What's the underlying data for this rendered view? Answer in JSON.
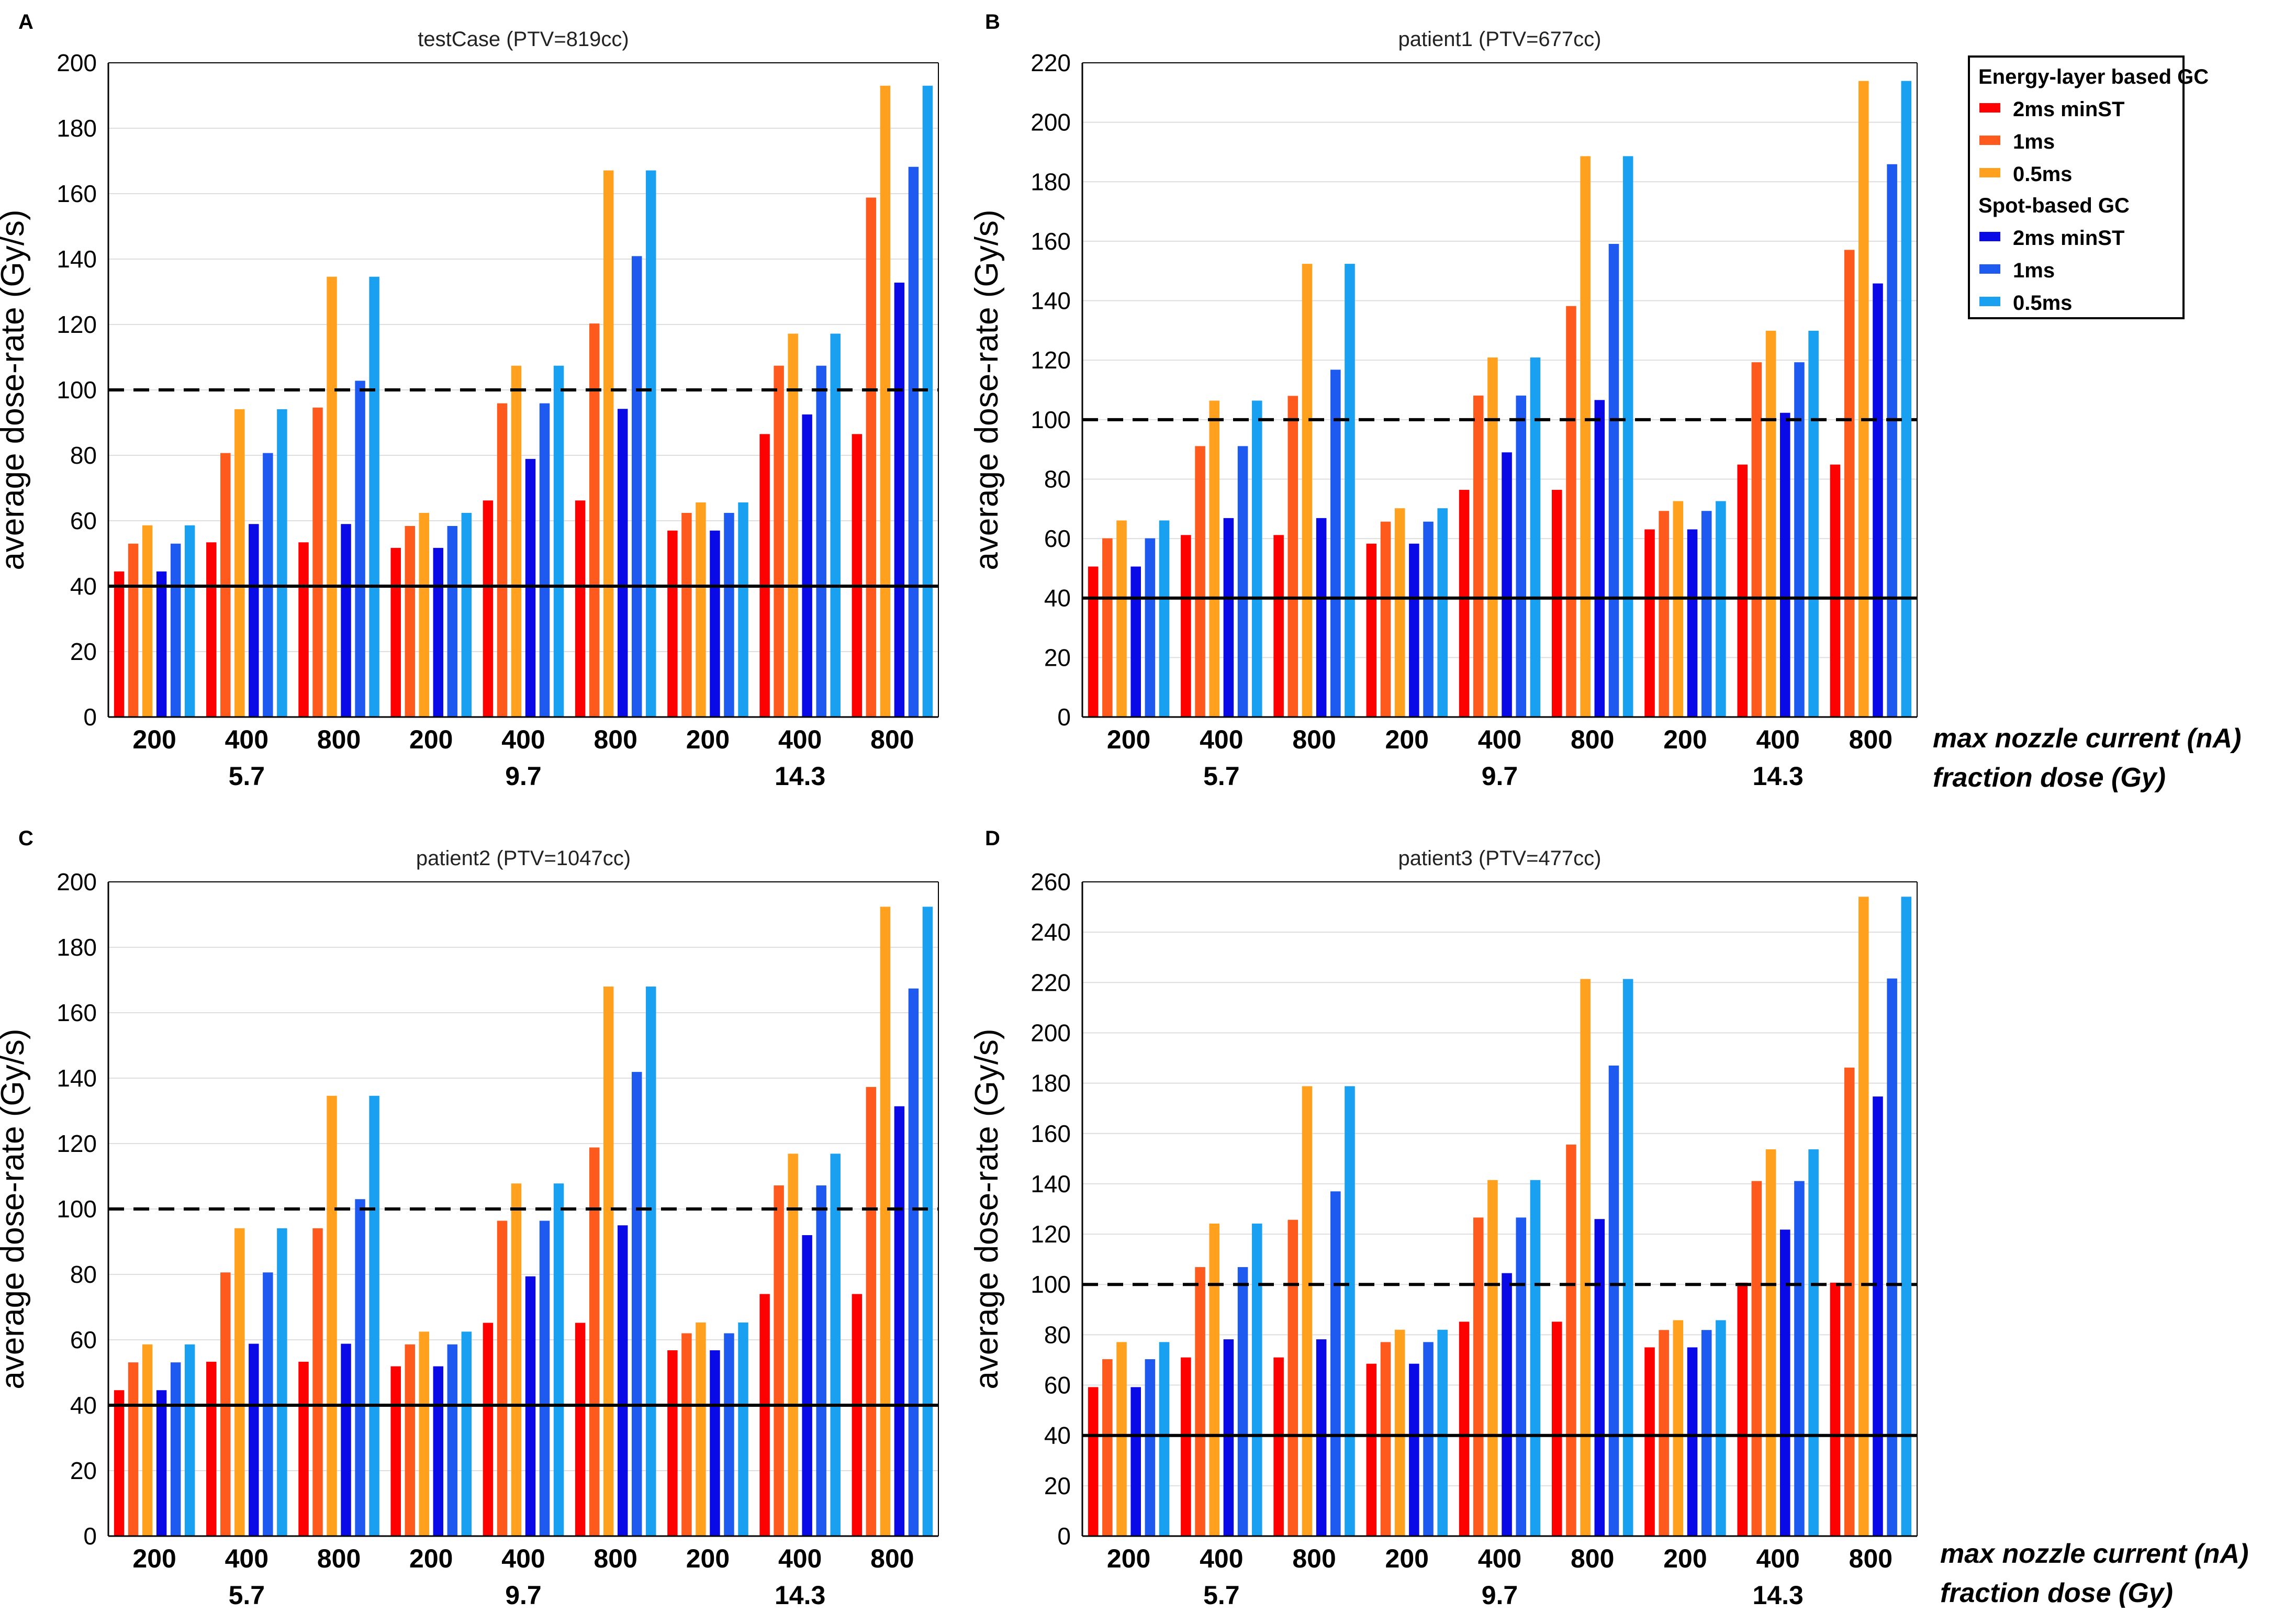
{
  "figure": {
    "x_axis_labels": {
      "current": "max nozzle current (nA)",
      "dose": "fraction dose (Gy)"
    }
  },
  "legend": {
    "group_titles": [
      "Energy-layer based GC",
      "Spot-based GC"
    ],
    "entries": [
      {
        "label": "2ms minST",
        "color": "#ff0000"
      },
      {
        "label": "1ms",
        "color": "#ff5a1e"
      },
      {
        "label": "0.5ms",
        "color": "#ffa01e"
      },
      {
        "label": "2ms minST",
        "color": "#0a0ae6"
      },
      {
        "label": "1ms",
        "color": "#1e5af0"
      },
      {
        "label": "0.5ms",
        "color": "#19a0f0"
      }
    ]
  },
  "chart_data": [
    {
      "type": "bar",
      "panel_letter": "A",
      "title": "testCase (PTV=819cc)",
      "ylabel": "average dose-rate (Gy/s)",
      "ylim": [
        0,
        200
      ],
      "yticks": [
        0,
        20,
        40,
        60,
        80,
        100,
        120,
        140,
        160,
        180,
        200
      ],
      "categories": [
        "200",
        "400",
        "800",
        "200",
        "400",
        "800",
        "200",
        "400",
        "800"
      ],
      "groups": [
        "5.7",
        "9.7",
        "14.3"
      ],
      "reference_lines": [
        {
          "value": 100,
          "style": "dashed"
        },
        {
          "value": 40,
          "style": "solid"
        }
      ],
      "series": [
        {
          "name": "Energy-layer based GC 2ms minST",
          "values": [
            44.5,
            53.4,
            53.4,
            51.7,
            66.2,
            66.2,
            57.0,
            86.5,
            86.5
          ]
        },
        {
          "name": "Energy-layer based GC 1ms",
          "values": [
            53.0,
            80.7,
            94.6,
            58.4,
            95.9,
            120.3,
            62.4,
            107.4,
            158.8
          ]
        },
        {
          "name": "Energy-layer based GC 0.5ms",
          "values": [
            58.6,
            94.1,
            134.6,
            62.4,
            107.4,
            167.1,
            65.6,
            117.2,
            193.0
          ]
        },
        {
          "name": "Spot-based GC 2ms minST",
          "values": [
            44.5,
            59.0,
            59.0,
            51.7,
            78.9,
            94.2,
            57.0,
            92.5,
            132.8
          ]
        },
        {
          "name": "Spot-based GC 1ms",
          "values": [
            53.0,
            80.7,
            102.8,
            58.4,
            95.9,
            140.9,
            62.4,
            107.4,
            168.2
          ]
        },
        {
          "name": "Spot-based GC 0.5ms",
          "values": [
            58.6,
            94.1,
            134.6,
            62.4,
            107.4,
            167.1,
            65.6,
            117.2,
            193.0
          ]
        }
      ]
    },
    {
      "type": "bar",
      "panel_letter": "B",
      "title": "patient1 (PTV=677cc)",
      "ylabel": "average dose-rate (Gy/s)",
      "ylim": [
        0,
        220
      ],
      "yticks": [
        0,
        20,
        40,
        60,
        80,
        100,
        120,
        140,
        160,
        180,
        200,
        220
      ],
      "categories": [
        "200",
        "400",
        "800",
        "200",
        "400",
        "800",
        "200",
        "400",
        "800"
      ],
      "groups": [
        "5.7",
        "9.7",
        "14.3"
      ],
      "reference_lines": [
        {
          "value": 100,
          "style": "dashed"
        },
        {
          "value": 40,
          "style": "solid"
        }
      ],
      "series": [
        {
          "name": "Energy-layer based GC 2ms minST",
          "values": [
            50.6,
            61.2,
            61.2,
            58.3,
            76.4,
            76.4,
            63.1,
            84.9,
            84.9
          ]
        },
        {
          "name": "Energy-layer based GC 1ms",
          "values": [
            60.1,
            91.1,
            108.0,
            65.7,
            108.1,
            138.2,
            69.3,
            119.3,
            157.1
          ]
        },
        {
          "name": "Energy-layer based GC 0.5ms",
          "values": [
            66.1,
            106.4,
            152.4,
            70.2,
            120.9,
            188.6,
            72.6,
            129.9,
            213.9
          ]
        },
        {
          "name": "Spot-based GC 2ms minST",
          "values": [
            50.6,
            66.9,
            66.9,
            58.3,
            89.0,
            106.6,
            63.1,
            102.3,
            145.8
          ]
        },
        {
          "name": "Spot-based GC 1ms",
          "values": [
            60.1,
            91.1,
            116.8,
            65.7,
            108.1,
            159.1,
            69.3,
            119.3,
            185.9
          ]
        },
        {
          "name": "Spot-based GC 0.5ms",
          "values": [
            66.1,
            106.4,
            152.4,
            70.2,
            120.9,
            188.6,
            72.6,
            129.9,
            213.9
          ]
        }
      ]
    },
    {
      "type": "bar",
      "panel_letter": "C",
      "title": "patient2 (PTV=1047cc)",
      "ylabel": "average dose-rate (Gy/s)",
      "ylim": [
        0,
        200
      ],
      "yticks": [
        0,
        20,
        40,
        60,
        80,
        100,
        120,
        140,
        160,
        180,
        200
      ],
      "categories": [
        "200",
        "400",
        "800",
        "200",
        "400",
        "800",
        "200",
        "400",
        "800"
      ],
      "groups": [
        "5.7",
        "9.7",
        "14.3"
      ],
      "reference_lines": [
        {
          "value": 100,
          "style": "dashed"
        },
        {
          "value": 40,
          "style": "solid"
        }
      ],
      "series": [
        {
          "name": "Energy-layer based GC 2ms minST",
          "values": [
            44.6,
            53.3,
            53.3,
            51.9,
            65.2,
            65.2,
            56.8,
            74.0,
            74.0
          ]
        },
        {
          "name": "Energy-layer based GC 1ms",
          "values": [
            53.1,
            80.6,
            94.1,
            58.6,
            96.4,
            118.8,
            62.0,
            107.2,
            137.3
          ]
        },
        {
          "name": "Energy-layer based GC 0.5ms",
          "values": [
            58.6,
            94.1,
            134.6,
            62.5,
            107.8,
            168.0,
            65.3,
            116.9,
            192.4
          ]
        },
        {
          "name": "Spot-based GC 2ms minST",
          "values": [
            44.6,
            58.8,
            58.8,
            51.9,
            79.4,
            95.0,
            56.8,
            92.0,
            131.4
          ]
        },
        {
          "name": "Spot-based GC 1ms",
          "values": [
            53.1,
            80.6,
            103.0,
            58.6,
            96.4,
            141.9,
            62.0,
            107.2,
            167.4
          ]
        },
        {
          "name": "Spot-based GC 0.5ms",
          "values": [
            58.6,
            94.1,
            134.6,
            62.5,
            107.8,
            168.0,
            65.3,
            116.9,
            192.4
          ]
        }
      ]
    },
    {
      "type": "bar",
      "panel_letter": "D",
      "title": "patient3 (PTV=477cc)",
      "ylabel": "average dose-rate (Gy/s)",
      "ylim": [
        0,
        260
      ],
      "yticks": [
        0,
        20,
        40,
        60,
        80,
        100,
        120,
        140,
        160,
        180,
        200,
        220,
        240,
        260
      ],
      "categories": [
        "200",
        "400",
        "800",
        "200",
        "400",
        "800",
        "200",
        "400",
        "800"
      ],
      "groups": [
        "5.7",
        "9.7",
        "14.3"
      ],
      "reference_lines": [
        {
          "value": 100,
          "style": "dashed"
        },
        {
          "value": 40,
          "style": "solid"
        }
      ],
      "series": [
        {
          "name": "Energy-layer based GC 2ms minST",
          "values": [
            59.2,
            71.0,
            71.0,
            68.5,
            85.2,
            85.2,
            75.0,
            100.7,
            100.7
          ]
        },
        {
          "name": "Energy-layer based GC 1ms",
          "values": [
            70.3,
            106.9,
            125.7,
            77.1,
            126.6,
            155.6,
            81.9,
            141.1,
            186.2
          ]
        },
        {
          "name": "Energy-layer based GC 0.5ms",
          "values": [
            77.1,
            124.2,
            178.8,
            82.0,
            141.5,
            221.4,
            85.8,
            153.7,
            254.1
          ]
        },
        {
          "name": "Spot-based GC 2ms minST",
          "values": [
            59.2,
            78.2,
            78.2,
            68.5,
            104.5,
            126.0,
            75.0,
            121.8,
            174.7
          ]
        },
        {
          "name": "Spot-based GC 1ms",
          "values": [
            70.3,
            106.9,
            137.0,
            77.1,
            126.6,
            187.0,
            81.9,
            141.1,
            221.6
          ]
        },
        {
          "name": "Spot-based GC 0.5ms",
          "values": [
            77.1,
            124.2,
            178.8,
            82.0,
            141.5,
            221.4,
            85.8,
            153.7,
            254.1
          ]
        }
      ]
    }
  ]
}
